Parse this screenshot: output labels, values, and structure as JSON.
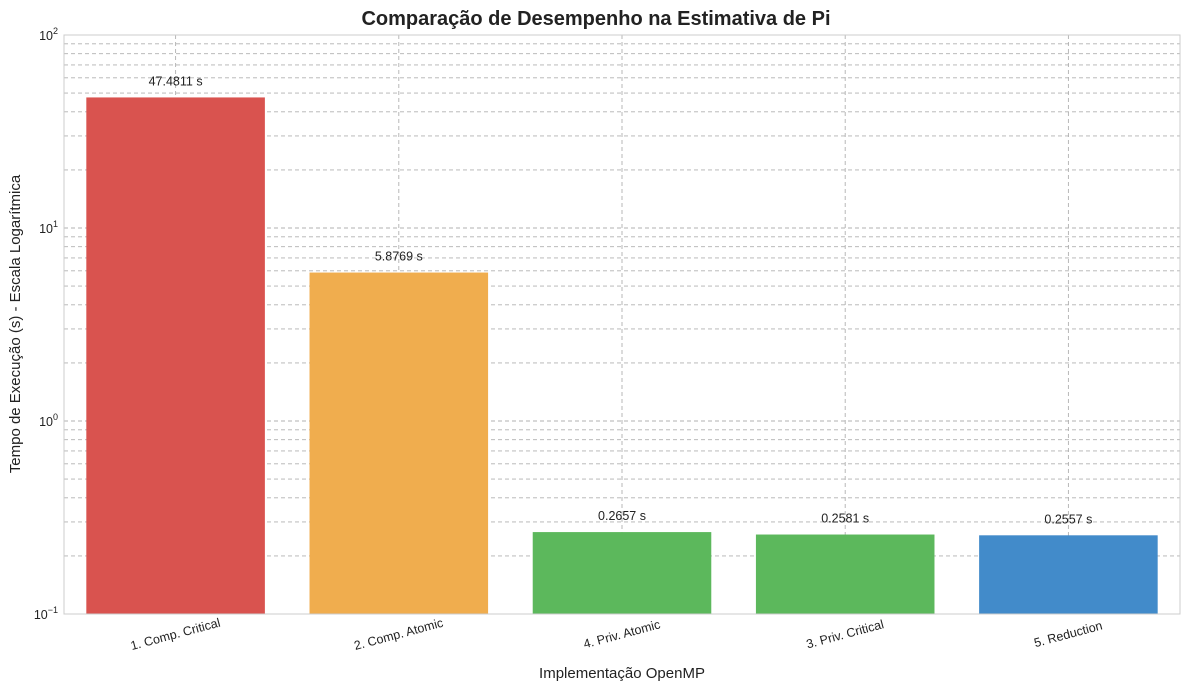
{
  "chart_data": {
    "type": "bar",
    "title": "Comparação de Desempenho na Estimativa de Pi",
    "xlabel": "Implementação OpenMP",
    "ylabel": "Tempo de Execução (s) - Escala Logarítmica",
    "yscale": "log",
    "ylim": [
      0.1,
      100
    ],
    "grid": true,
    "categories": [
      "1. Comp. Critical",
      "2. Comp. Atomic",
      "4. Priv. Atomic",
      "3. Priv. Critical",
      "5. Reduction"
    ],
    "values": [
      47.4811,
      5.8769,
      0.2657,
      0.2581,
      0.2557
    ],
    "data_labels": [
      "47.4811 s",
      "5.8769 s",
      "0.2657 s",
      "0.2581 s",
      "0.2557 s"
    ],
    "colors": [
      "#d9534f",
      "#f0ad4e",
      "#5cb85c",
      "#5cb85c",
      "#428bca"
    ],
    "y_ticks": [
      {
        "value": 0.1,
        "base": "10",
        "exp": "−1"
      },
      {
        "value": 1,
        "base": "10",
        "exp": "0"
      },
      {
        "value": 10,
        "base": "10",
        "exp": "1"
      },
      {
        "value": 100,
        "base": "10",
        "exp": "2"
      }
    ]
  }
}
